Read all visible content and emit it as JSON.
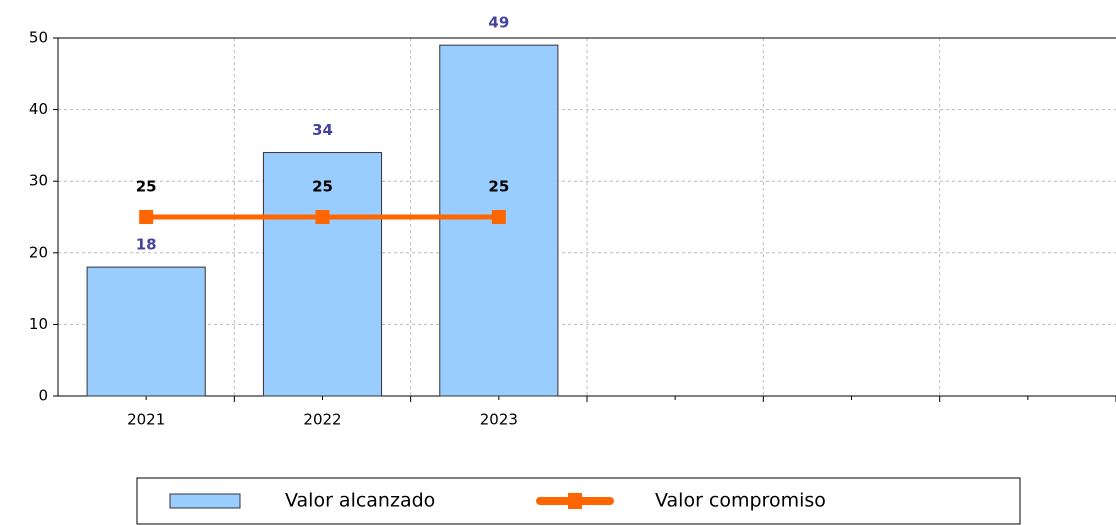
{
  "chart_data": {
    "type": "bar",
    "categories": [
      "2021",
      "2022",
      "2023",
      null,
      null,
      null
    ],
    "series": [
      {
        "name": "Valor alcanzado",
        "type": "bar",
        "color": "#99ccff",
        "values": [
          18,
          34,
          49,
          null,
          null,
          null
        ]
      },
      {
        "name": "Valor compromiso",
        "type": "line",
        "color": "#ff6600",
        "values": [
          25,
          25,
          25,
          null,
          null,
          null
        ]
      }
    ],
    "ylim": [
      0,
      50
    ],
    "yticks": [
      0,
      10,
      20,
      30,
      40,
      50
    ],
    "grid": true,
    "legend": "bottom"
  }
}
